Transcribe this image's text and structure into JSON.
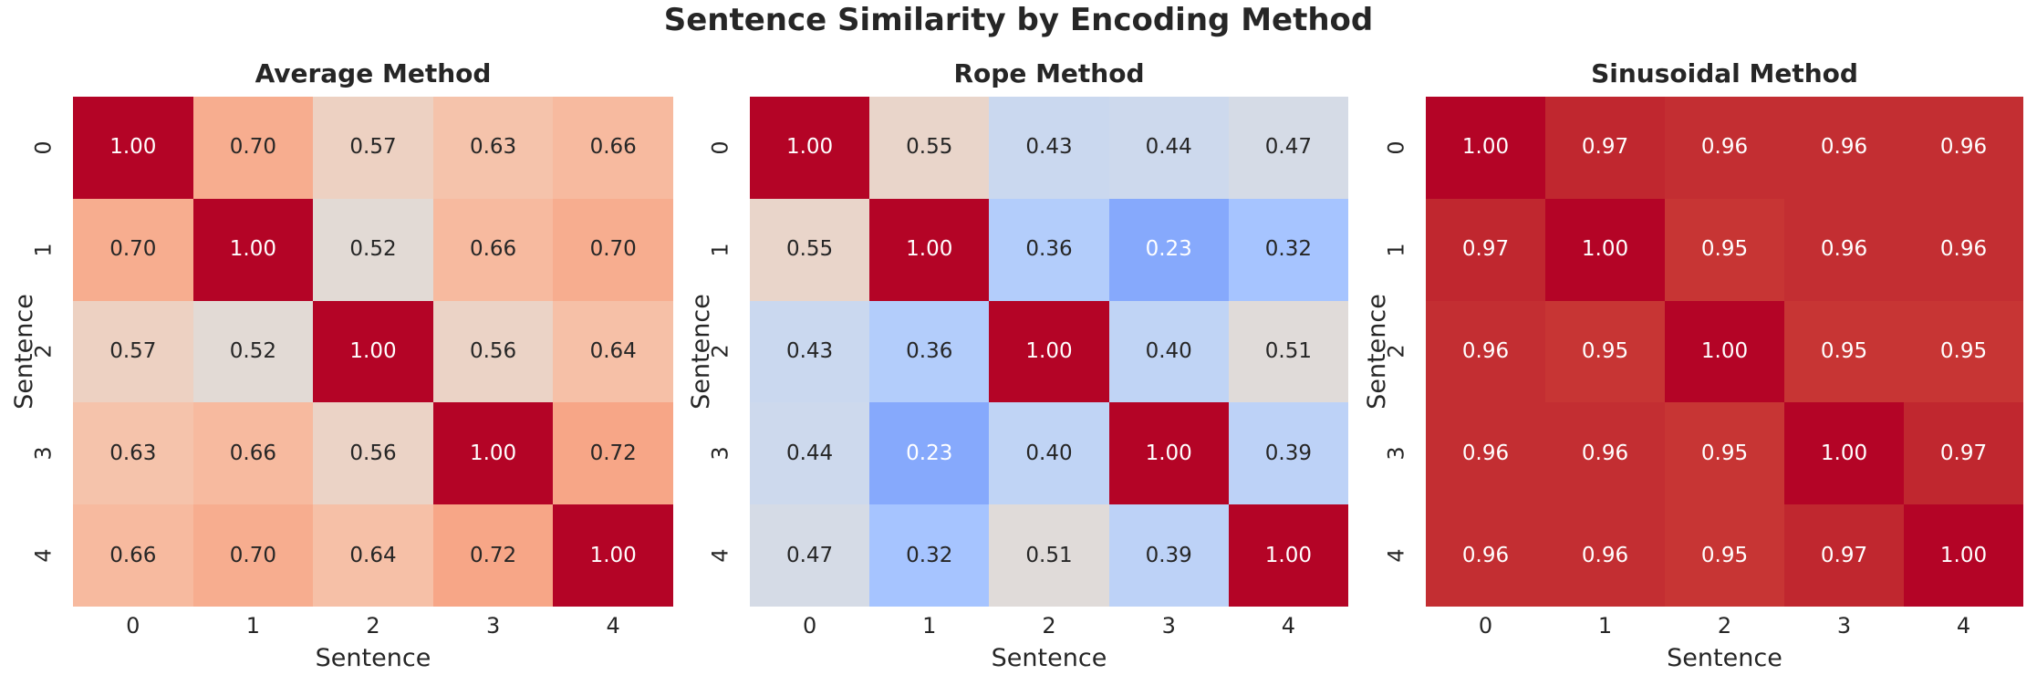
{
  "figure": {
    "title": "Sentence Similarity by Encoding Method"
  },
  "colors": {
    "background": "#ffffff",
    "text": "#262626",
    "annotation_dark": "#262626",
    "annotation_light": "#ffffff",
    "colormap_low": "#3b4cc0",
    "colormap_mid": "#dddddd",
    "colormap_high": "#b40426"
  },
  "chart_data": [
    {
      "type": "heatmap",
      "title": "Average Method",
      "xlabel": "Sentence",
      "ylabel": "Sentence",
      "x_ticks": [
        "0",
        "1",
        "2",
        "3",
        "4"
      ],
      "y_ticks": [
        "0",
        "1",
        "2",
        "3",
        "4"
      ],
      "colormap": "coolwarm",
      "vmin": 0,
      "vmax": 1,
      "annotation_decimals": 2,
      "values": [
        [
          1.0,
          0.7,
          0.57,
          0.63,
          0.66
        ],
        [
          0.7,
          1.0,
          0.52,
          0.66,
          0.7
        ],
        [
          0.57,
          0.52,
          1.0,
          0.56,
          0.64
        ],
        [
          0.63,
          0.66,
          0.56,
          1.0,
          0.72
        ],
        [
          0.66,
          0.7,
          0.64,
          0.72,
          1.0
        ]
      ]
    },
    {
      "type": "heatmap",
      "title": "Rope Method",
      "xlabel": "Sentence",
      "ylabel": "Sentence",
      "x_ticks": [
        "0",
        "1",
        "2",
        "3",
        "4"
      ],
      "y_ticks": [
        "0",
        "1",
        "2",
        "3",
        "4"
      ],
      "colormap": "coolwarm",
      "vmin": 0,
      "vmax": 1,
      "annotation_decimals": 2,
      "values": [
        [
          1.0,
          0.55,
          0.43,
          0.44,
          0.47
        ],
        [
          0.55,
          1.0,
          0.36,
          0.23,
          0.32
        ],
        [
          0.43,
          0.36,
          1.0,
          0.4,
          0.51
        ],
        [
          0.44,
          0.23,
          0.4,
          1.0,
          0.39
        ],
        [
          0.47,
          0.32,
          0.51,
          0.39,
          1.0
        ]
      ]
    },
    {
      "type": "heatmap",
      "title": "Sinusoidal Method",
      "xlabel": "Sentence",
      "ylabel": "Sentence",
      "x_ticks": [
        "0",
        "1",
        "2",
        "3",
        "4"
      ],
      "y_ticks": [
        "0",
        "1",
        "2",
        "3",
        "4"
      ],
      "colormap": "coolwarm",
      "vmin": 0,
      "vmax": 1,
      "annotation_decimals": 2,
      "values": [
        [
          1.0,
          0.97,
          0.96,
          0.96,
          0.96
        ],
        [
          0.97,
          1.0,
          0.95,
          0.96,
          0.96
        ],
        [
          0.96,
          0.95,
          1.0,
          0.95,
          0.95
        ],
        [
          0.96,
          0.96,
          0.95,
          1.0,
          0.97
        ],
        [
          0.96,
          0.96,
          0.95,
          0.97,
          1.0
        ]
      ]
    }
  ]
}
